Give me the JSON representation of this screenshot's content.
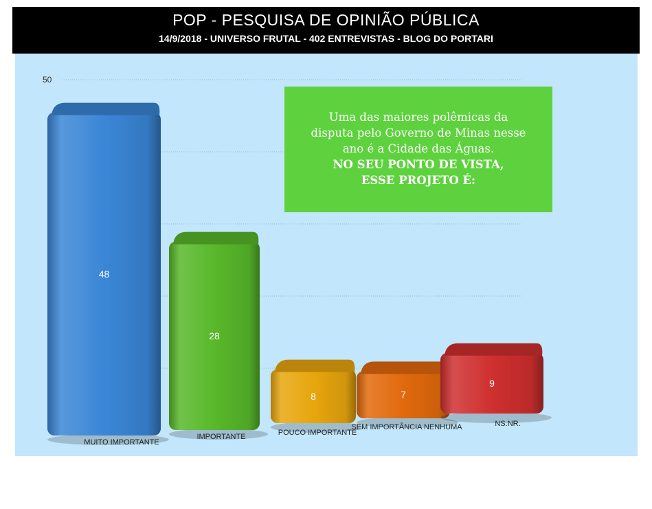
{
  "header": {
    "title": "POP - PESQUISA DE OPINIÃO PÚBLICA",
    "subtitle": "14/9/2018 - UNIVERSO FRUTAL - 402 ENTREVISTAS - BLOG DO PORTARI"
  },
  "callout": {
    "line1": "Uma das maiores polêmicas da",
    "line2": "disputa pelo Governo de Minas nesse",
    "line3": "ano é a Cidade das Águas.",
    "line4": "NO SEU PONTO DE VISTA,",
    "line5": "ESSE PROJETO É:"
  },
  "chart_data": {
    "type": "bar",
    "categories": [
      "MUITO IMPORTANTE",
      "IMPORTANTE",
      "POUCO IMPORTANTE",
      "SEM IMPORTÂNCIA NENHUMA",
      "NS.NR."
    ],
    "values": [
      48,
      28,
      8,
      7,
      9
    ],
    "ylim": [
      0,
      50
    ],
    "ytick_visible": [
      "50"
    ],
    "grid": true,
    "colors": [
      "#3a86d6",
      "#58b82a",
      "#e8a60d",
      "#e2690c",
      "#cf2f2f"
    ]
  }
}
